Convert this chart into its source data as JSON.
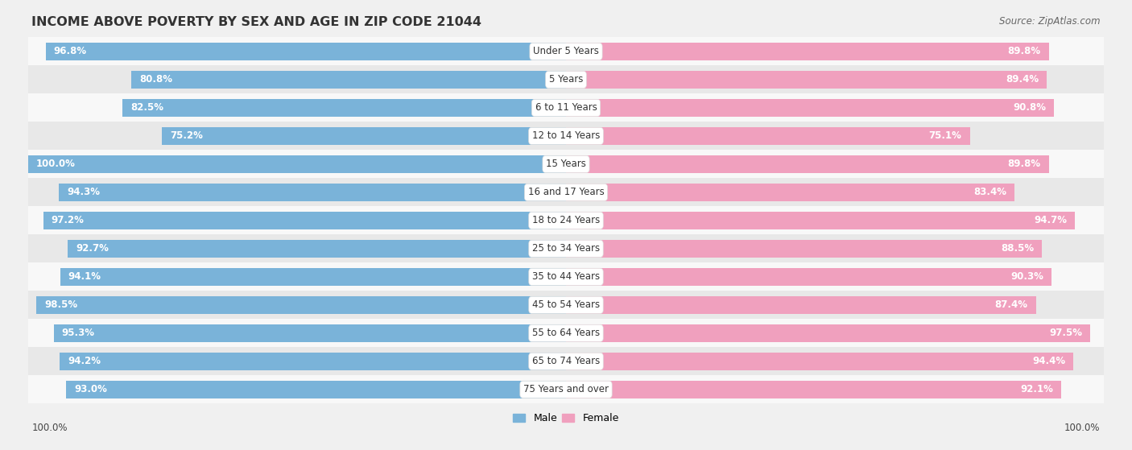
{
  "title": "INCOME ABOVE POVERTY BY SEX AND AGE IN ZIP CODE 21044",
  "source": "Source: ZipAtlas.com",
  "categories": [
    "Under 5 Years",
    "5 Years",
    "6 to 11 Years",
    "12 to 14 Years",
    "15 Years",
    "16 and 17 Years",
    "18 to 24 Years",
    "25 to 34 Years",
    "35 to 44 Years",
    "45 to 54 Years",
    "55 to 64 Years",
    "65 to 74 Years",
    "75 Years and over"
  ],
  "male_values": [
    96.8,
    80.8,
    82.5,
    75.2,
    100.0,
    94.3,
    97.2,
    92.7,
    94.1,
    98.5,
    95.3,
    94.2,
    93.0
  ],
  "female_values": [
    89.8,
    89.4,
    90.8,
    75.1,
    89.8,
    83.4,
    94.7,
    88.5,
    90.3,
    87.4,
    97.5,
    94.4,
    92.1
  ],
  "male_color": "#7ab3d9",
  "female_color": "#f0a0be",
  "male_color_dark": "#5a9bc4",
  "female_color_dark": "#e882a8",
  "bg_color": "#f0f0f0",
  "row_color_light": "#f8f8f8",
  "row_color_dark": "#e8e8e8",
  "max_value": 100.0,
  "title_fontsize": 11.5,
  "label_fontsize": 8.5,
  "value_fontsize": 8.5,
  "source_fontsize": 8.5,
  "legend_fontsize": 9,
  "bar_height": 0.62
}
